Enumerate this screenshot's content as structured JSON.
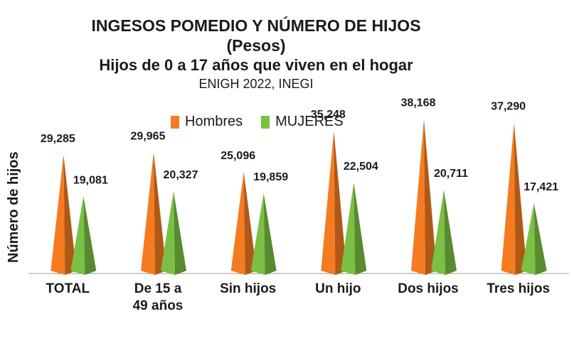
{
  "colors": {
    "hombres": "#F47B20",
    "mujeres": "#7AC043",
    "axis": "#999999"
  },
  "chart_data": {
    "type": "bar",
    "title": "INGESOS POMEDIO Y NÚMERO DE HIJOS",
    "subtitle": "(Pesos)",
    "subtitle2": "Hijos de 0 a 17 años que viven en el hogar",
    "source": "ENIGH 2022, INEGI",
    "ylabel": "Número de hijos",
    "xlabel": "",
    "categories": [
      [
        "TOTAL"
      ],
      [
        "De 15 a",
        "49 años"
      ],
      [
        "Sin hijos"
      ],
      [
        "Un hijo"
      ],
      [
        "Dos hijos"
      ],
      [
        "Tres hijos"
      ]
    ],
    "series": [
      {
        "name": "Hombres",
        "values": [
          29285,
          29965,
          25096,
          35248,
          38168,
          37290
        ],
        "labels": [
          "29,285",
          "29,965",
          "25,096",
          "35,248",
          "38,168",
          "37,290"
        ]
      },
      {
        "name": "MUJERES",
        "values": [
          19081,
          20327,
          19859,
          22504,
          20711,
          17421
        ],
        "labels": [
          "19,081",
          "20,327",
          "19,859",
          "22,504",
          "20,711",
          "17,421"
        ]
      }
    ],
    "ylim": [
      0,
      40000
    ],
    "legend_position": "top",
    "grid": false
  }
}
